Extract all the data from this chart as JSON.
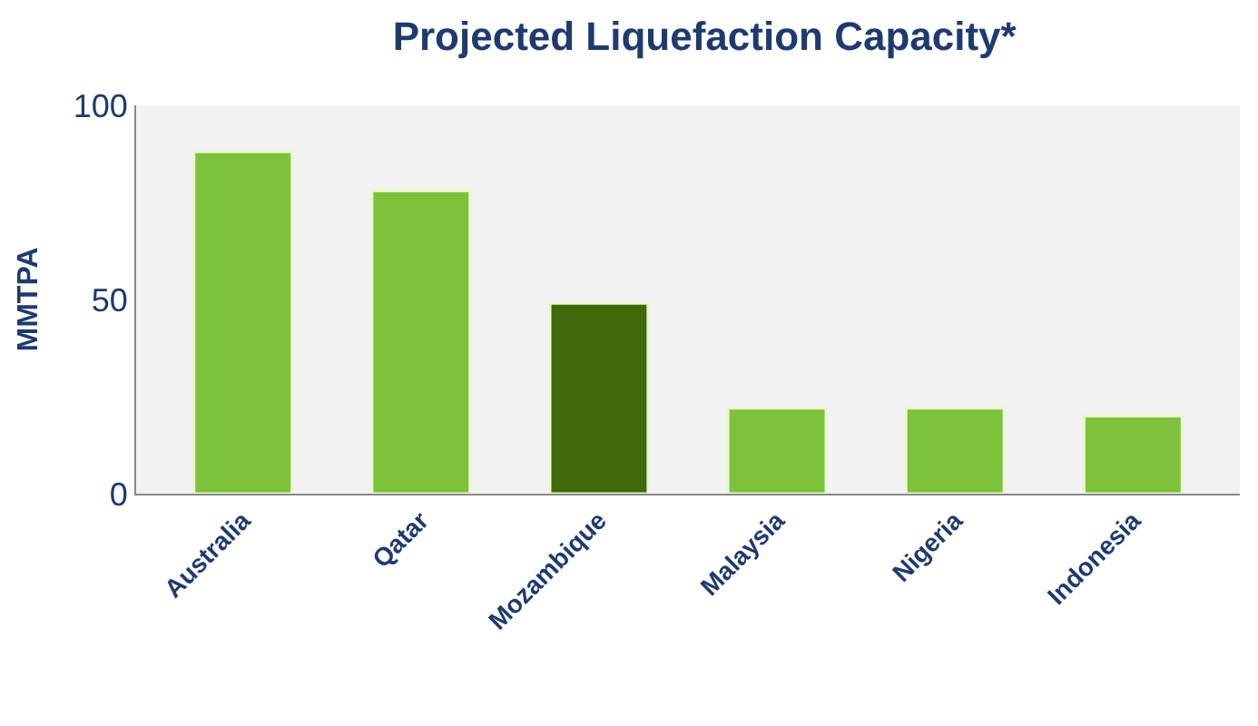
{
  "chart_data": {
    "type": "bar",
    "title": "Projected Liquefaction Capacity*",
    "ylabel": "MMTPA",
    "categories": [
      "Australia",
      "Qatar",
      "Mozambique",
      "Malaysia",
      "Nigeria",
      "Indonesia"
    ],
    "values": [
      88,
      78,
      49,
      22,
      22,
      20
    ],
    "colors": [
      "#7cc23a",
      "#7cc23a",
      "#3f6a0c",
      "#7cc23a",
      "#7cc23a",
      "#7cc23a"
    ],
    "ylim": [
      0,
      100
    ],
    "yticks": [
      0,
      50,
      100
    ],
    "grid": false
  }
}
